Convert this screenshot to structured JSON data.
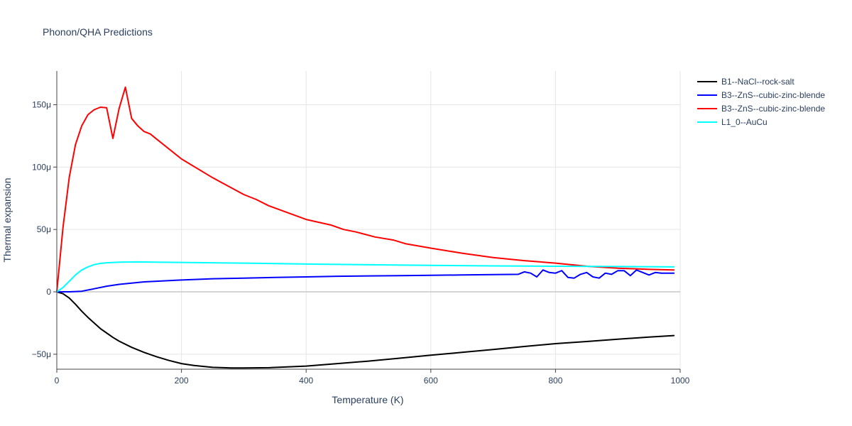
{
  "chart_data": {
    "type": "line",
    "title": "Phonon/QHA Predictions",
    "xlabel": "Temperature (K)",
    "ylabel": "Thermal expansion",
    "xlim": [
      0,
      1000
    ],
    "ylim": [
      -62,
      177
    ],
    "x_ticks": [
      0,
      200,
      400,
      600,
      800,
      1000
    ],
    "x_tick_labels": [
      "0",
      "200",
      "400",
      "600",
      "800",
      "1000"
    ],
    "y_ticks": [
      -50,
      0,
      50,
      100,
      150
    ],
    "y_tick_labels": [
      "−50μ",
      "0",
      "50μ",
      "100μ",
      "150μ"
    ],
    "y_unit": "μ (1e-6 /K)",
    "grid": true,
    "legend_position": "top-right, outside plot",
    "series": [
      {
        "name": "B1--NaCl--rock-salt",
        "color": "#000000",
        "x": [
          0,
          10,
          20,
          30,
          40,
          50,
          60,
          70,
          80,
          90,
          100,
          120,
          140,
          160,
          180,
          200,
          220,
          250,
          280,
          300,
          340,
          400,
          450,
          500,
          550,
          600,
          650,
          700,
          750,
          800,
          850,
          900,
          950,
          990
        ],
        "y": [
          0,
          -1.5,
          -5,
          -10,
          -15.5,
          -20.5,
          -25,
          -29.5,
          -33,
          -36.5,
          -39.5,
          -44.5,
          -48.5,
          -52,
          -55,
          -57.5,
          -59,
          -60.5,
          -61,
          -61,
          -60.8,
          -59.5,
          -57.5,
          -55.5,
          -53.2,
          -50.8,
          -48.5,
          -46.2,
          -43.8,
          -41.5,
          -39.8,
          -38,
          -36.2,
          -35
        ]
      },
      {
        "name": "B3--ZnS--cubic-zinc-blende",
        "color": "#0000ff",
        "x": [
          0,
          20,
          40,
          60,
          80,
          100,
          120,
          140,
          160,
          200,
          250,
          300,
          350,
          400,
          450,
          500,
          550,
          600,
          650,
          700,
          740,
          750,
          760,
          770,
          780,
          790,
          800,
          810,
          820,
          830,
          840,
          850,
          860,
          870,
          880,
          890,
          900,
          910,
          920,
          930,
          940,
          950,
          960,
          970,
          980,
          990
        ],
        "y": [
          0,
          0,
          0.5,
          2.5,
          4.5,
          6,
          7,
          8,
          8.5,
          9.5,
          10.5,
          11,
          11.5,
          12,
          12.5,
          12.8,
          13,
          13.3,
          13.5,
          13.8,
          14,
          16,
          15,
          12,
          17.5,
          15.5,
          15,
          17,
          11.5,
          11,
          14,
          15.5,
          12,
          11,
          15,
          14,
          17,
          17,
          13,
          17.5,
          15.5,
          13.5,
          15.5,
          15,
          15,
          15
        ]
      },
      {
        "name": "B3--ZnS--cubic-zinc-blende",
        "color": "#ff0000",
        "x": [
          0,
          10,
          20,
          30,
          40,
          50,
          60,
          70,
          80,
          90,
          100,
          110,
          120,
          130,
          140,
          150,
          160,
          200,
          250,
          300,
          320,
          340,
          400,
          440,
          460,
          480,
          510,
          540,
          560,
          600,
          650,
          700,
          750,
          800,
          830,
          850,
          900,
          950,
          990
        ],
        "y": [
          0,
          52,
          92,
          118,
          133,
          142,
          146,
          148,
          147.5,
          123,
          147,
          164,
          139,
          133,
          128.5,
          126.5,
          122.5,
          106.5,
          91.5,
          78,
          74,
          69,
          58,
          53.5,
          50,
          48,
          44,
          41.5,
          38.5,
          35,
          31,
          27.5,
          25,
          23,
          21.5,
          20.5,
          19,
          18,
          17.5
        ]
      },
      {
        "name": "L1_0--AuCu",
        "color": "#00ffff",
        "x": [
          0,
          10,
          20,
          30,
          40,
          50,
          60,
          70,
          80,
          100,
          130,
          160,
          200,
          300,
          400,
          500,
          600,
          700,
          800,
          900,
          990
        ],
        "y": [
          0,
          3.5,
          8.5,
          13.5,
          17.5,
          20,
          21.8,
          22.8,
          23.3,
          23.8,
          24,
          23.8,
          23.6,
          23,
          22.3,
          21.7,
          21.2,
          20.8,
          20.5,
          20.3,
          20
        ]
      }
    ]
  }
}
